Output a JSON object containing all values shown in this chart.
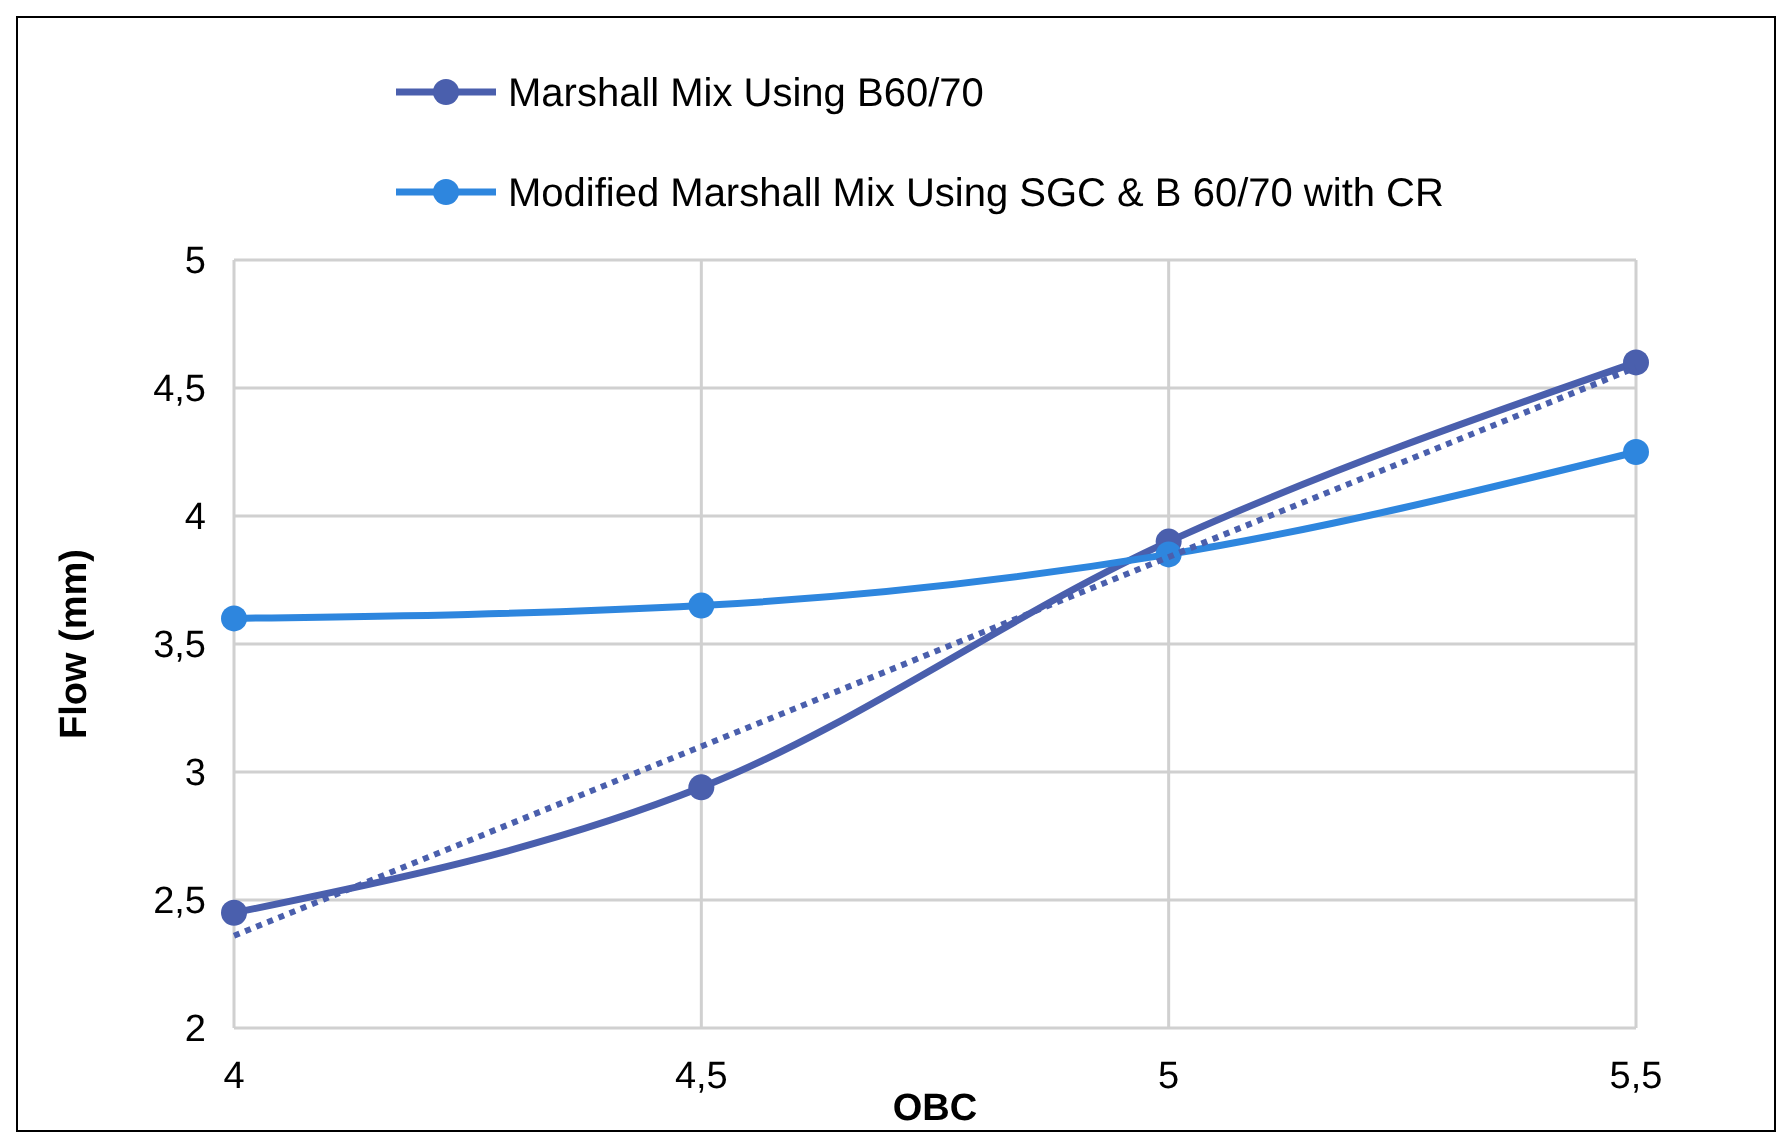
{
  "chart_data": {
    "type": "line",
    "xlabel": "OBC",
    "ylabel": "Flow (mm)",
    "x": [
      4,
      4.5,
      5,
      5.5
    ],
    "xlim": [
      4,
      5.5
    ],
    "xticks": [
      4,
      {
        "value": 4.5,
        "label": "4,5"
      },
      5,
      {
        "value": 5.5,
        "label": "5,5"
      }
    ],
    "ylim": [
      2,
      5
    ],
    "yticks": [
      2,
      {
        "value": 2.5,
        "label": "2,5"
      },
      3,
      {
        "value": 3.5,
        "label": "3,5"
      },
      4,
      {
        "value": 4.5,
        "label": "4,5"
      },
      5
    ],
    "grid": true,
    "legend": "top",
    "marker": "circle",
    "line_style": "solid",
    "series": [
      {
        "name": "Marshall Mix Using B60/70",
        "color": "#4a5fad",
        "values": [
          2.45,
          2.94,
          3.9,
          4.6
        ]
      },
      {
        "name": "Modified Marshall Mix Using SGC & B 60/70 with CR",
        "color": "#2e86de",
        "values": [
          3.6,
          3.65,
          3.85,
          4.25
        ]
      },
      {
        "type": "line",
        "color": "#4a5fad",
        "x": [
          4,
          5.5
        ],
        "values": [
          2.36,
          4.58
        ],
        "marker": "none",
        "line_style": "dotted"
      }
    ]
  }
}
